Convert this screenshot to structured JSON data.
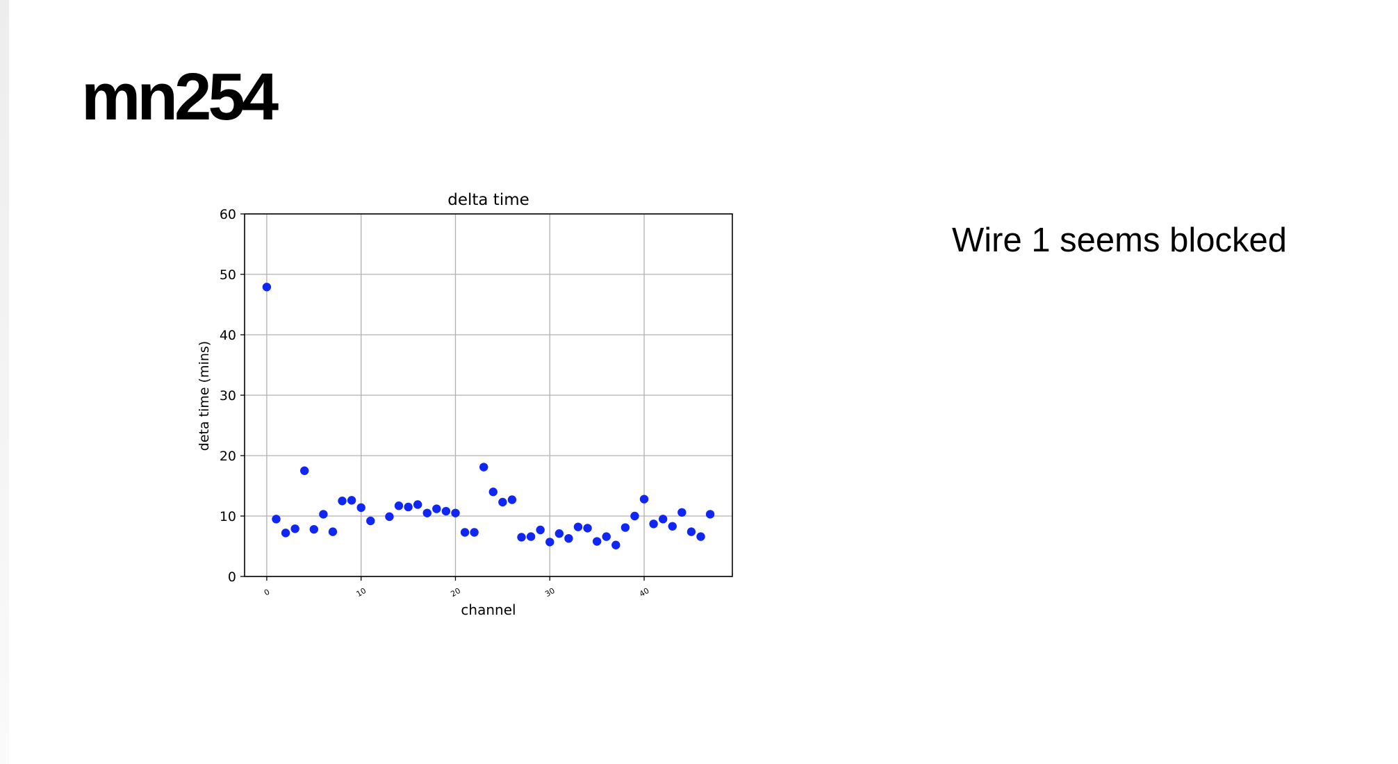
{
  "slide": {
    "title": "mn254",
    "note": "Wire 1 seems blocked"
  },
  "colors": {
    "point": "#1026f5",
    "grid": "#b0b0b0",
    "axis": "#000000",
    "background": "#ffffff"
  },
  "chart_data": {
    "type": "scatter",
    "title": "delta time",
    "xlabel": "channel",
    "ylabel": "deta time (mins)",
    "xlim": [
      -2.35,
      49.35
    ],
    "ylim": [
      0,
      60
    ],
    "xticks": [
      0,
      10,
      20,
      30,
      40
    ],
    "yticks": [
      0,
      10,
      20,
      30,
      40,
      50,
      60
    ],
    "grid": true,
    "x": [
      0,
      1,
      2,
      3,
      4,
      5,
      6,
      7,
      8,
      9,
      10,
      11,
      13,
      14,
      15,
      16,
      17,
      18,
      19,
      20,
      21,
      22,
      23,
      24,
      25,
      26,
      27,
      28,
      29,
      30,
      31,
      32,
      33,
      34,
      35,
      36,
      37,
      38,
      39,
      40,
      41,
      42,
      43,
      44,
      45,
      46,
      47
    ],
    "y": [
      47.9,
      9.5,
      7.2,
      7.9,
      17.5,
      7.8,
      10.3,
      7.4,
      12.5,
      12.6,
      11.4,
      9.2,
      9.9,
      11.7,
      11.5,
      11.9,
      10.5,
      11.2,
      10.8,
      10.5,
      7.3,
      7.3,
      18.1,
      14.0,
      12.3,
      12.7,
      6.5,
      6.6,
      7.7,
      5.7,
      7.1,
      6.3,
      8.2,
      8.0,
      5.8,
      6.6,
      5.2,
      8.1,
      10.0,
      12.8,
      8.7,
      9.5,
      8.3,
      10.6,
      7.4,
      6.6,
      10.3
    ]
  }
}
